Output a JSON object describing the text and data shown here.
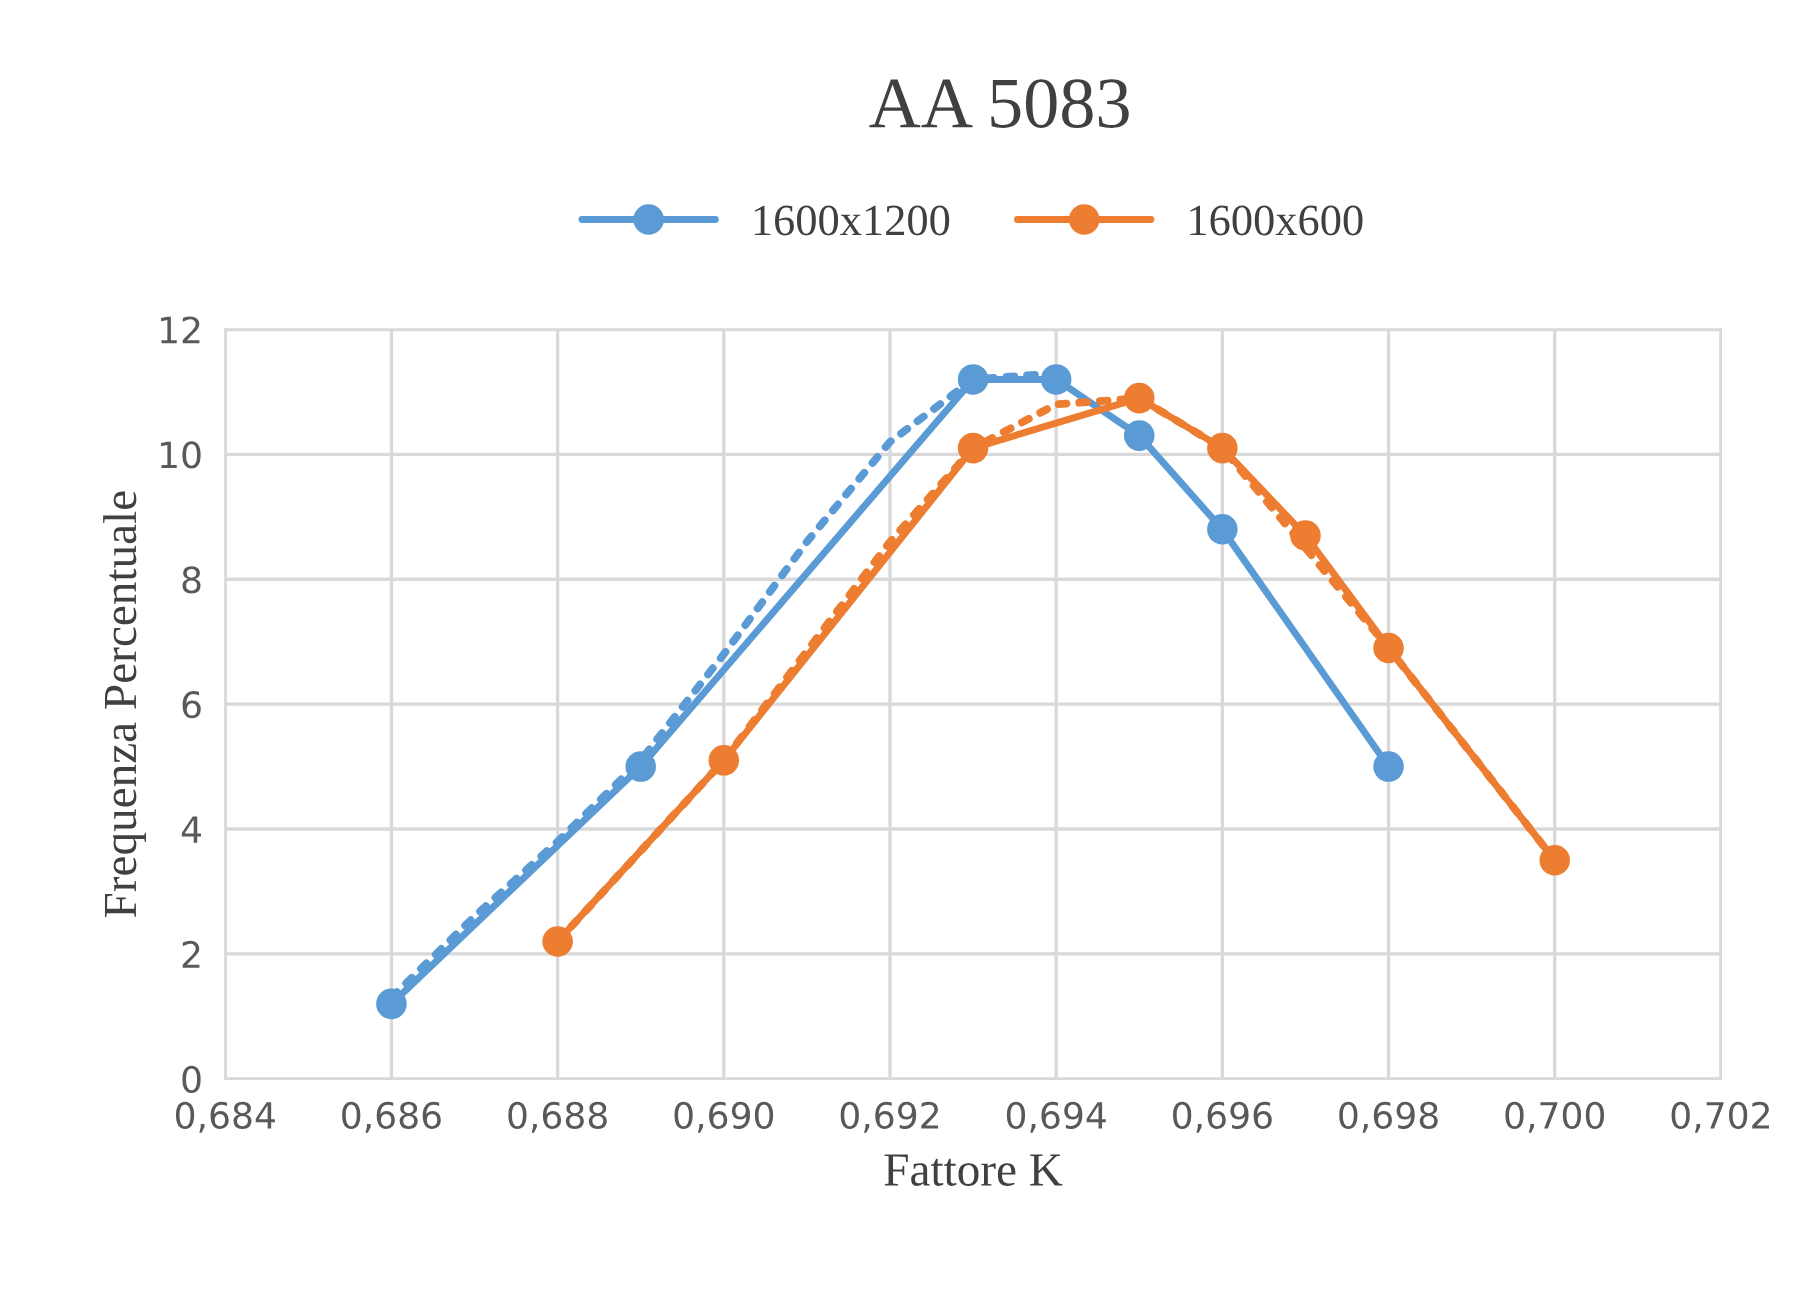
{
  "chart_data": {
    "type": "line",
    "title": "AA 5083",
    "xlabel": "Fattore K",
    "ylabel": "Frequenza Percentuale",
    "series": [
      {
        "name": "1600x1200",
        "color": "#5b9bd5",
        "x": [
          0.686,
          0.689,
          0.693,
          0.694,
          0.695,
          0.696,
          0.698
        ],
        "values": [
          1.2,
          5.0,
          11.2,
          11.2,
          10.3,
          8.8,
          5.0
        ]
      },
      {
        "name": "1600x600",
        "color": "#ed7d31",
        "x": [
          0.688,
          0.69,
          0.693,
          0.695,
          0.696,
          0.697,
          0.698,
          0.7
        ],
        "values": [
          2.2,
          5.1,
          10.1,
          10.9,
          10.1,
          8.7,
          6.9,
          3.5
        ]
      },
      {
        "color": "#5b9bd5",
        "marker": "none",
        "line_style": "dotted",
        "x": [
          0.686,
          0.687,
          0.688,
          0.689,
          0.69,
          0.691,
          0.692,
          0.693,
          0.694
        ],
        "values": [
          1.3,
          2.6,
          3.8,
          5.1,
          6.8,
          8.6,
          10.2,
          11.2,
          11.3
        ]
      },
      {
        "color": "#ed7d31",
        "marker": "none",
        "line_style": "dotted",
        "x": [
          0.688,
          0.69,
          0.692,
          0.693,
          0.694,
          0.695,
          0.696,
          0.698,
          0.7
        ],
        "values": [
          2.2,
          5.1,
          8.6,
          10.1,
          10.8,
          10.9,
          10.1,
          6.9,
          3.5
        ]
      }
    ],
    "marker": "circle",
    "line_style": "solid",
    "legend": "top",
    "grid": true,
    "xlim": [
      0.684,
      0.702
    ],
    "ylim": [
      0,
      12
    ],
    "xticks": [
      {
        "value": 0.684,
        "label": "0,684"
      },
      {
        "value": 0.686,
        "label": "0,686"
      },
      {
        "value": 0.688,
        "label": "0,688"
      },
      {
        "value": 0.69,
        "label": "0,690"
      },
      {
        "value": 0.692,
        "label": "0,692"
      },
      {
        "value": 0.694,
        "label": "0,694"
      },
      {
        "value": 0.696,
        "label": "0,696"
      },
      {
        "value": 0.698,
        "label": "0,698"
      },
      {
        "value": 0.7,
        "label": "0,700"
      },
      {
        "value": 0.702,
        "label": "0,702"
      }
    ],
    "yticks": [
      0,
      2,
      4,
      6,
      8,
      10,
      12
    ]
  }
}
